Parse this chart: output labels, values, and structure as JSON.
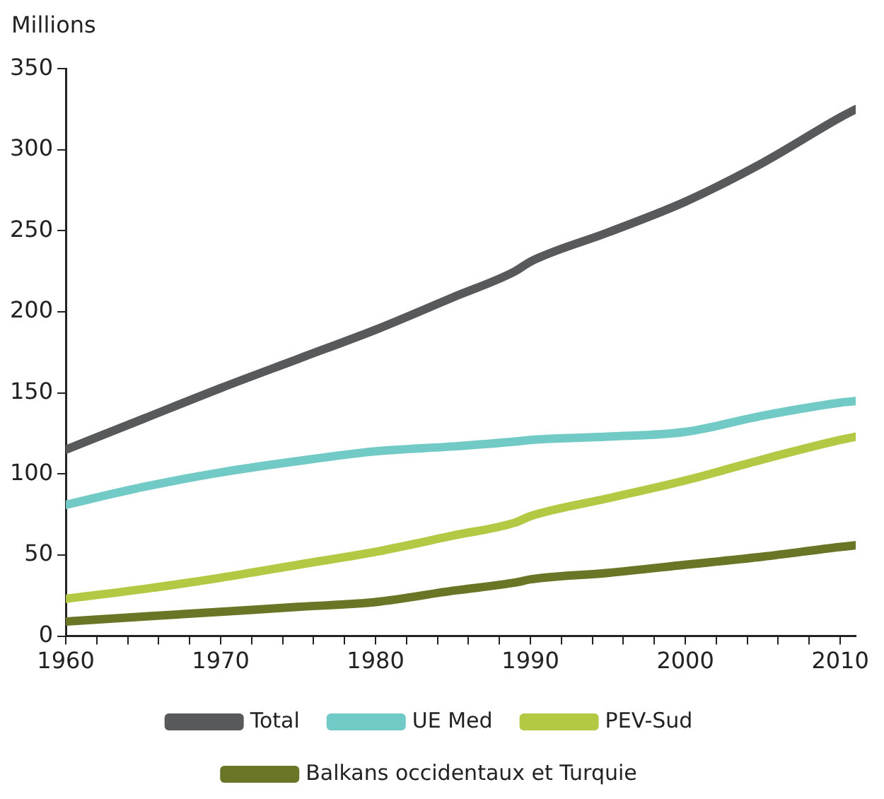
{
  "chart_data": {
    "type": "line",
    "ylabel": "Millions",
    "x": [
      1960,
      1965,
      1970,
      1975,
      1980,
      1985,
      1989,
      1990,
      1995,
      2000,
      2005,
      2010,
      2011
    ],
    "xlim": [
      1960,
      2011
    ],
    "xticks": [
      1960,
      {
        "value": 1962,
        "label": null
      },
      {
        "value": 1964,
        "label": null
      },
      {
        "value": 1966,
        "label": null
      },
      {
        "value": 1968,
        "label": null
      },
      1970,
      {
        "value": 1972,
        "label": null
      },
      {
        "value": 1974,
        "label": null
      },
      {
        "value": 1976,
        "label": null
      },
      {
        "value": 1978,
        "label": null
      },
      1980,
      {
        "value": 1982,
        "label": null
      },
      {
        "value": 1984,
        "label": null
      },
      {
        "value": 1986,
        "label": null
      },
      {
        "value": 1988,
        "label": null
      },
      1990,
      {
        "value": 1992,
        "label": null
      },
      {
        "value": 1994,
        "label": null
      },
      {
        "value": 1996,
        "label": null
      },
      {
        "value": 1998,
        "label": null
      },
      2000,
      {
        "value": 2002,
        "label": null
      },
      {
        "value": 2004,
        "label": null
      },
      {
        "value": 2006,
        "label": null
      },
      {
        "value": 2008,
        "label": null
      },
      2010
    ],
    "ylim": [
      0,
      350
    ],
    "yticks": [
      0,
      50,
      100,
      150,
      200,
      250,
      300,
      350
    ],
    "grid": false,
    "legend": "bottom",
    "marker": "none",
    "line_style": "solid",
    "series": [
      {
        "name": "Total",
        "color": "#58595b",
        "values": [
          115,
          134,
          153,
          171,
          189,
          209,
          225,
          231,
          249,
          268,
          292,
          320,
          325
        ]
      },
      {
        "name": "UE Med",
        "color": "#72cac6",
        "values": [
          81,
          92,
          101,
          108,
          114,
          117,
          120,
          121,
          123,
          126,
          136,
          144,
          145
        ]
      },
      {
        "name": "PEV-Sud",
        "color": "#b3c843",
        "values": [
          23,
          29,
          36,
          44,
          52,
          62,
          70,
          74,
          85,
          96,
          109,
          121,
          123
        ]
      },
      {
        "name": "Balkans occidentaux et Turquie",
        "color": "#6a7526",
        "values": [
          9,
          12,
          15,
          18,
          21,
          28,
          33,
          35,
          39,
          44,
          49,
          55,
          56
        ]
      }
    ]
  }
}
